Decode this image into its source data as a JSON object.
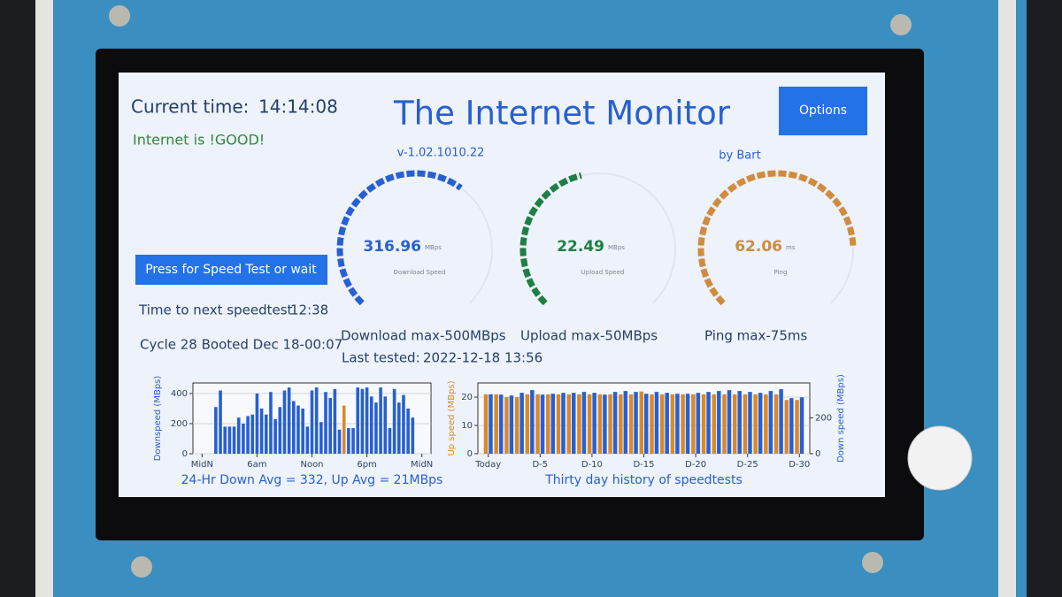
{
  "header": {
    "current_time_label": "Current time:",
    "current_time": "14:14:08",
    "status": "Internet is !GOOD!",
    "title": "The Internet Monitor",
    "version": "v-1.02.1010.22",
    "options_button": "Options",
    "author": "by Bart"
  },
  "controls": {
    "speed_test_button": "Press for Speed Test or wait",
    "next_test_label": "Time to next speedtest",
    "next_test_time": "12:38",
    "cycle_info": "Cycle 28 Booted Dec 18-00:07",
    "last_tested_label": "Last tested:",
    "last_tested": "2022-12-18 13:56"
  },
  "gauges": [
    {
      "value": 316.96,
      "unit": "MBps",
      "label": "Download Speed",
      "max": 500,
      "max_label": "Download max-500MBps",
      "color": "#2760d0"
    },
    {
      "value": 22.49,
      "unit": "MBps",
      "label": "Upload Speed",
      "max": 50,
      "max_label": "Upload max-50MBps",
      "color": "#1e7f45"
    },
    {
      "value": 62.06,
      "unit": "ms",
      "label": "Ping",
      "max": 75,
      "max_label": "Ping max-75ms",
      "color": "#cf8c3e"
    }
  ],
  "chart_data": [
    {
      "type": "bar",
      "ylabel": "Downspeed (MBps)",
      "caption": "24-Hr Down Avg = 332, Up Avg = 21MBps",
      "x": [
        1.5,
        2,
        2.5,
        3,
        3.5,
        4,
        4.5,
        5,
        5.5,
        6,
        6.5,
        7,
        7.5,
        8,
        8.5,
        9,
        9.5,
        10,
        10.5,
        11,
        11.5,
        12,
        12.5,
        13,
        13.5,
        14,
        14.5,
        15,
        15.5,
        16,
        16.5,
        17,
        17.5,
        18,
        18.5,
        19,
        19.5,
        20,
        20.5,
        21,
        21.5,
        22,
        22.5,
        23
      ],
      "values": [
        310,
        420,
        180,
        180,
        180,
        240,
        200,
        250,
        260,
        400,
        300,
        260,
        410,
        230,
        310,
        420,
        440,
        350,
        320,
        300,
        180,
        420,
        440,
        210,
        410,
        370,
        430,
        160,
        320,
        170,
        170,
        440,
        430,
        440,
        380,
        340,
        440,
        380,
        170,
        430,
        340,
        390,
        300,
        240
      ],
      "colors": [
        "#2760d0",
        "#2760d0",
        "#2760d0",
        "#2760d0",
        "#2760d0",
        "#2760d0",
        "#2760d0",
        "#2760d0",
        "#2760d0",
        "#2760d0",
        "#2760d0",
        "#2760d0",
        "#2760d0",
        "#2760d0",
        "#2760d0",
        "#2760d0",
        "#2760d0",
        "#2760d0",
        "#2760d0",
        "#2760d0",
        "#2760d0",
        "#2760d0",
        "#2760d0",
        "#2760d0",
        "#2760d0",
        "#2760d0",
        "#2760d0",
        "#2760d0",
        "#d9882e",
        "#2760d0",
        "#2760d0",
        "#2760d0",
        "#2760d0",
        "#2760d0",
        "#2760d0",
        "#2760d0",
        "#2760d0",
        "#2760d0",
        "#2760d0",
        "#2760d0",
        "#2760d0",
        "#2760d0",
        "#2760d0",
        "#2760d0"
      ],
      "xlim": [
        -1,
        25
      ],
      "xticks": [
        {
          "value": 0,
          "label": "MidN"
        },
        {
          "value": 6,
          "label": "6am"
        },
        {
          "value": 12,
          "label": "Noon"
        },
        {
          "value": 18,
          "label": "6pm"
        },
        {
          "value": 24,
          "label": "MidN"
        }
      ],
      "ylim": [
        0,
        470
      ],
      "yticks": [
        0,
        200,
        400
      ],
      "grid": true
    },
    {
      "type": "grouped_bar",
      "ylabel": "Up speed (MBps)",
      "y2label": "Down speed (MBps)",
      "caption": "Thirty day history of speedtests",
      "x": [
        0,
        1,
        2,
        3,
        4,
        5,
        6,
        7,
        8,
        9,
        10,
        11,
        12,
        13,
        14,
        15,
        16,
        17,
        18,
        19,
        20,
        21,
        22,
        23,
        24,
        25,
        26,
        27,
        28,
        29,
        30
      ],
      "series": [
        {
          "color": "#d9882e",
          "values": [
            21,
            21,
            20,
            20,
            21,
            21,
            21,
            21,
            21,
            21,
            21,
            21,
            21,
            21,
            21,
            22,
            21,
            21,
            21,
            21,
            21,
            21,
            21,
            21,
            21,
            21,
            21,
            21,
            21,
            19,
            19
          ]
        },
        {
          "color": "#2760d0",
          "axis": "y2",
          "values": [
            332,
            330,
            325,
            340,
            355,
            330,
            335,
            340,
            340,
            345,
            340,
            330,
            345,
            350,
            345,
            335,
            345,
            340,
            335,
            335,
            340,
            345,
            350,
            355,
            350,
            345,
            340,
            350,
            360,
            310,
            315
          ]
        }
      ],
      "xlim": [
        -1,
        31
      ],
      "xticks": [
        {
          "value": 0,
          "label": "Today"
        },
        {
          "value": 5,
          "label": "D-5"
        },
        {
          "value": 10,
          "label": "D-10"
        },
        {
          "value": 15,
          "label": "D-15"
        },
        {
          "value": 20,
          "label": "D-20"
        },
        {
          "value": 25,
          "label": "D-25"
        },
        {
          "value": 30,
          "label": "D-30"
        }
      ],
      "ylim": [
        0,
        25
      ],
      "yticks": [
        0,
        10,
        20
      ],
      "y2lim": [
        0,
        395
      ],
      "y2ticks": [
        0,
        200
      ],
      "grid": true
    }
  ]
}
